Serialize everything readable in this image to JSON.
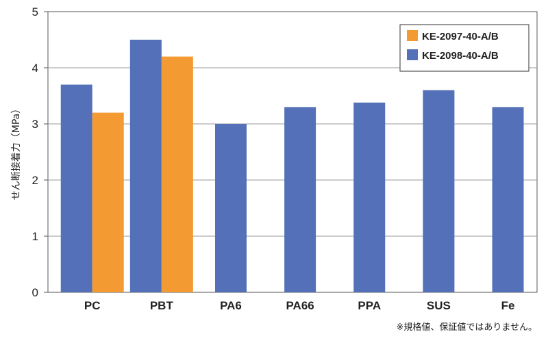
{
  "chart_data": {
    "type": "bar",
    "categories": [
      "PC",
      "PBT",
      "PA6",
      "PA66",
      "PPA",
      "SUS",
      "Fe"
    ],
    "series": [
      {
        "name": "KE-2098-40-A/B",
        "color": "#5470b8",
        "values": [
          3.7,
          4.5,
          3.0,
          3.3,
          3.38,
          3.6,
          3.3
        ]
      },
      {
        "name": "KE-2097-40-A/B",
        "color": "#f39a33",
        "values": [
          3.2,
          4.2,
          null,
          null,
          null,
          null,
          null
        ]
      }
    ],
    "legend": {
      "placement": "top-right",
      "entries": [
        {
          "name": "KE-2097-40-A/B",
          "color": "#f39a33"
        },
        {
          "name": "KE-2098-40-A/B",
          "color": "#5470b8"
        }
      ]
    },
    "ylabel": "せん断接着力（MPa）",
    "xlabel": "",
    "ylim": [
      0,
      5
    ],
    "yticks": [
      0,
      1,
      2,
      3,
      4,
      5
    ],
    "grid": true,
    "note": "※規格値、保証値ではありません。"
  }
}
